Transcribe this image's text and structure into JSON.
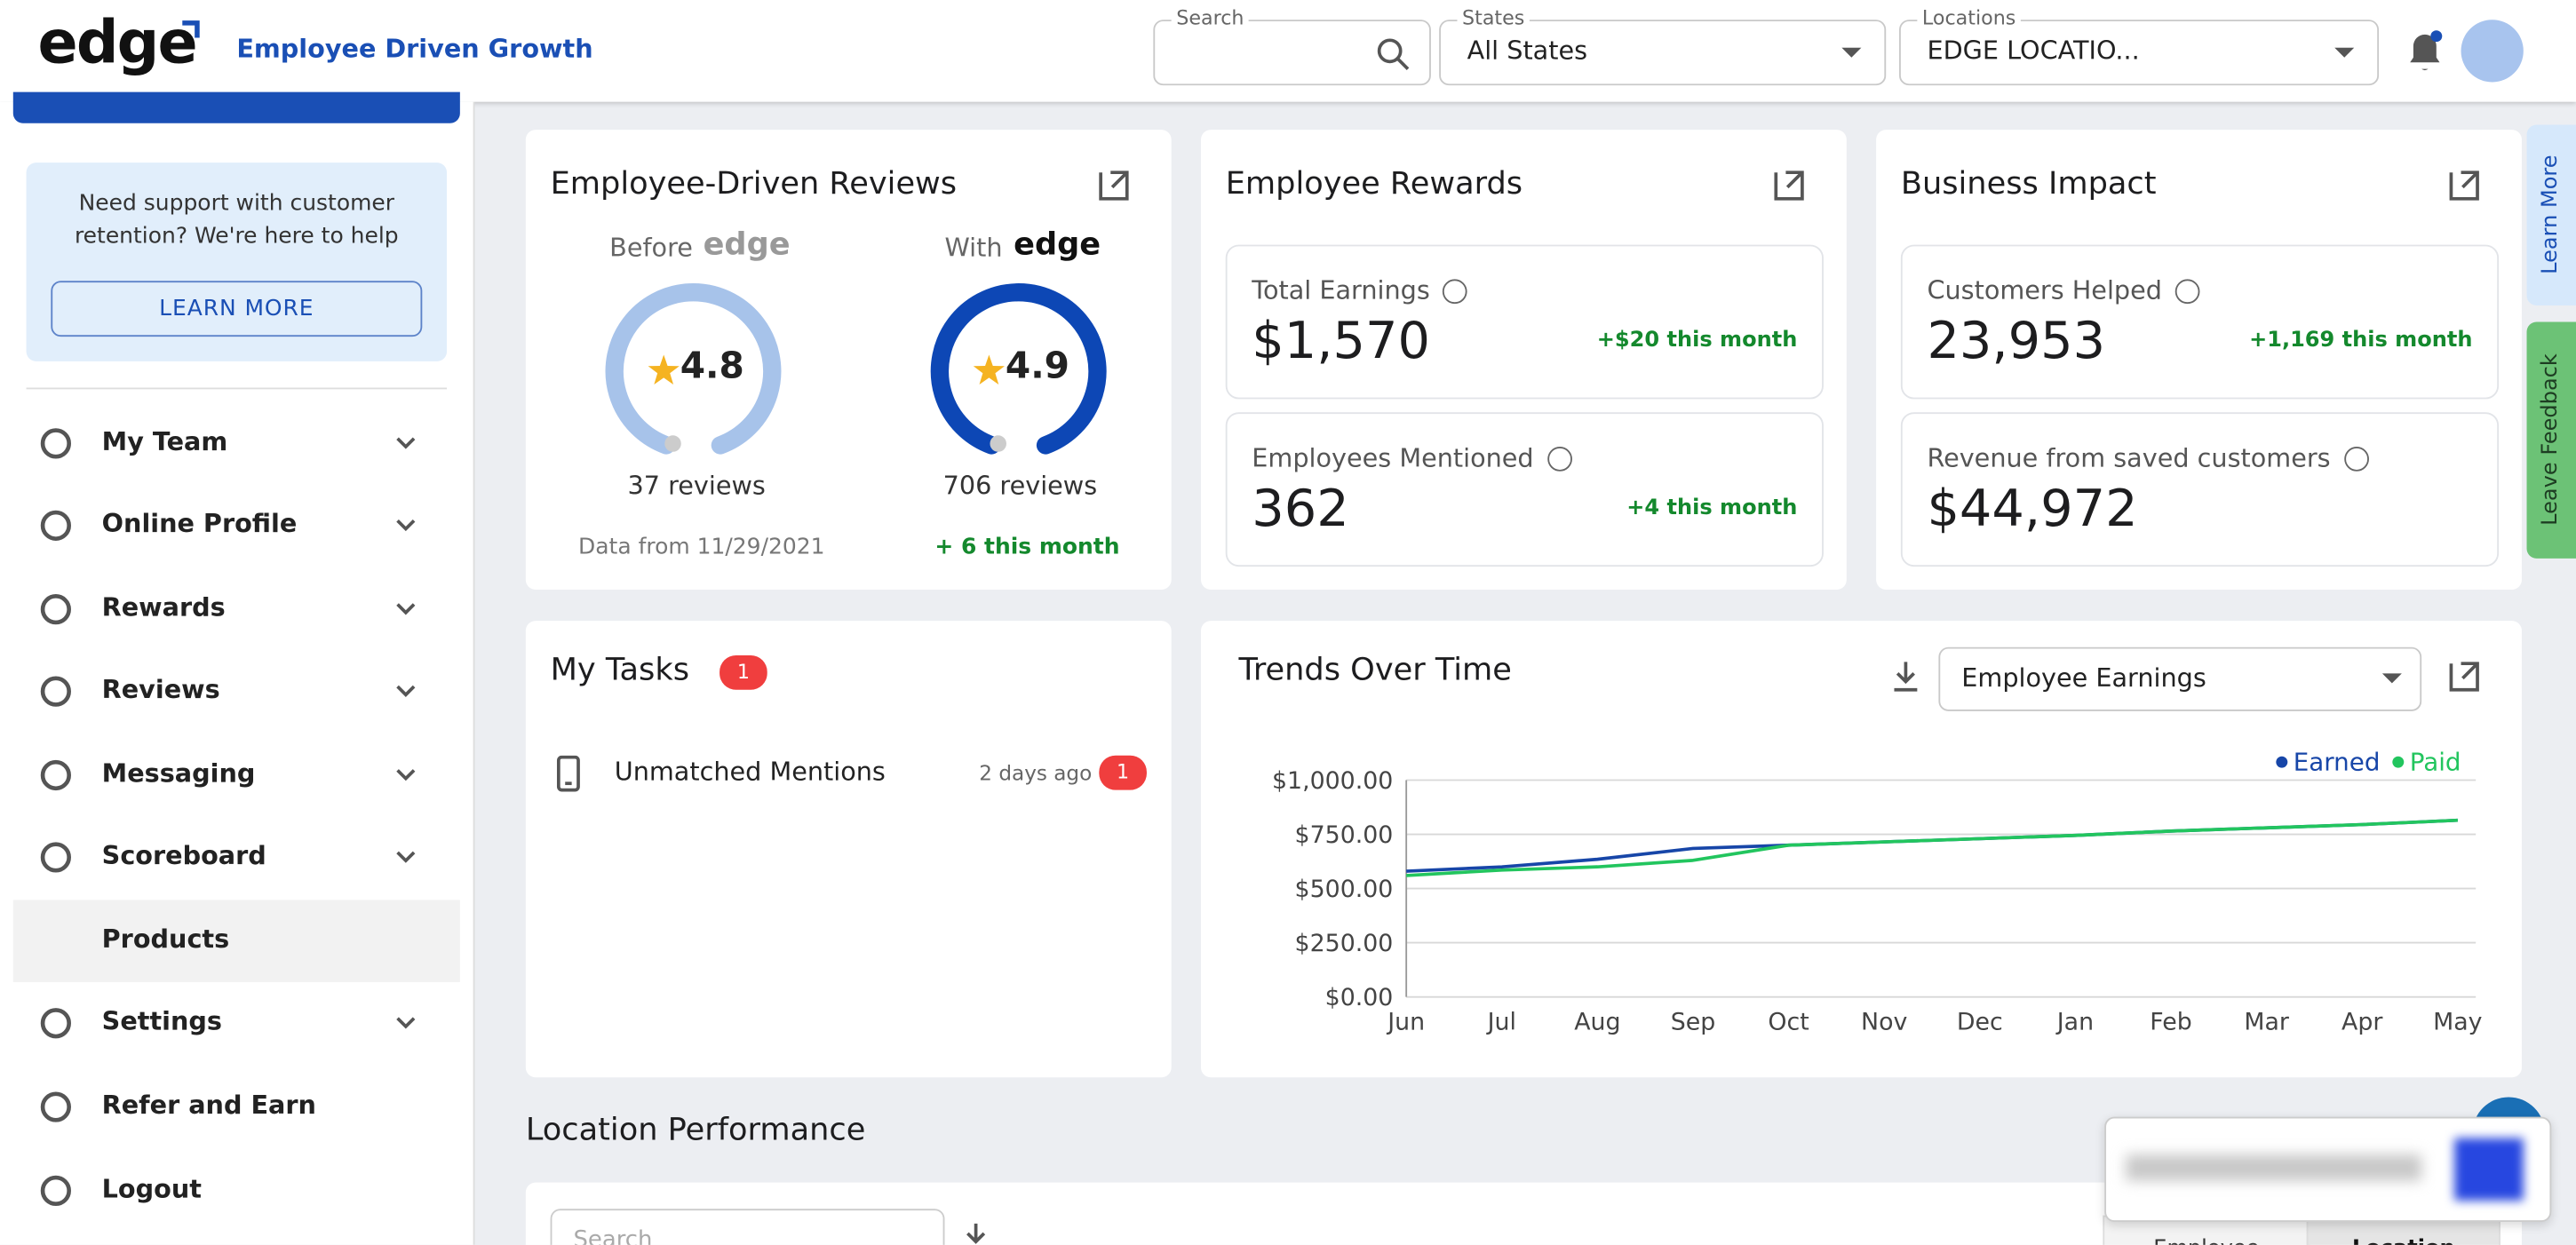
{
  "header": {
    "logo": "edge",
    "tagline": "Employee Driven Growth",
    "search_label": "Search",
    "states_label": "States",
    "states_value": "All States",
    "locations_label": "Locations",
    "locations_value": "EDGE LOCATIO..."
  },
  "sidebar": {
    "support_text": "Need support with customer retention? We're here to help",
    "learn_more": "LEARN MORE",
    "menu": [
      "My Team",
      "Online Profile",
      "Rewards",
      "Reviews",
      "Messaging",
      "Scoreboard",
      "Products",
      "Settings",
      "Refer and Earn",
      "Logout"
    ]
  },
  "reviews": {
    "title": "Employee-Driven Reviews",
    "before_label": "Before",
    "before_rating": 4.8,
    "before_count": "37 reviews",
    "before_note": "Data from 11/29/2021",
    "with_label": "With",
    "with_rating": 4.9,
    "with_count": "706 reviews",
    "with_note": "+ 6 this month"
  },
  "rewards": {
    "title": "Employee Rewards",
    "items": [
      {
        "label": "Total Earnings",
        "value": "$1,570",
        "delta": "+$20 this month"
      },
      {
        "label": "Employees Mentioned",
        "value": "362",
        "delta": "+4 this month"
      }
    ]
  },
  "impact": {
    "title": "Business Impact",
    "items": [
      {
        "label": "Customers Helped",
        "value": "23,953",
        "delta": "+1,169 this month"
      },
      {
        "label": "Revenue from saved customers",
        "value": "$44,972",
        "delta": ""
      }
    ]
  },
  "tasks": {
    "title": "My Tasks",
    "count": 1,
    "items": [
      {
        "label": "Unmatched Mentions",
        "time": "2 days ago",
        "count": 1
      }
    ]
  },
  "trends": {
    "title": "Trends Over Time",
    "metric": "Employee Earnings",
    "type": "line",
    "categories": [
      "Jun",
      "Jul",
      "Aug",
      "Sep",
      "Oct",
      "Nov",
      "Dec",
      "Jan",
      "Feb",
      "Mar",
      "Apr",
      "May"
    ],
    "series": [
      {
        "name": "Earned",
        "color": "#1746a8",
        "values": [
          580,
          600,
          635,
          685,
          700,
          715,
          730,
          745,
          765,
          780,
          795,
          815
        ]
      },
      {
        "name": "Paid",
        "color": "#22c55e",
        "values": [
          560,
          585,
          600,
          630,
          700,
          715,
          730,
          745,
          765,
          780,
          795,
          815
        ]
      }
    ],
    "ylim": [
      0,
      1000
    ],
    "yticks": [
      {
        "value": 0,
        "label": "$0.00"
      },
      {
        "value": 250,
        "label": "$250.00"
      },
      {
        "value": 500,
        "label": "$500.00"
      },
      {
        "value": 750,
        "label": "$750.00"
      },
      {
        "value": 1000,
        "label": "$1,000.00"
      }
    ],
    "grid": true,
    "legend": "top-right"
  },
  "location": {
    "title": "Location Performance",
    "search_placeholder": "Search",
    "tabs": [
      "Employee",
      "Location"
    ]
  },
  "side_tabs": [
    "Learn More",
    "Leave Feedback"
  ]
}
